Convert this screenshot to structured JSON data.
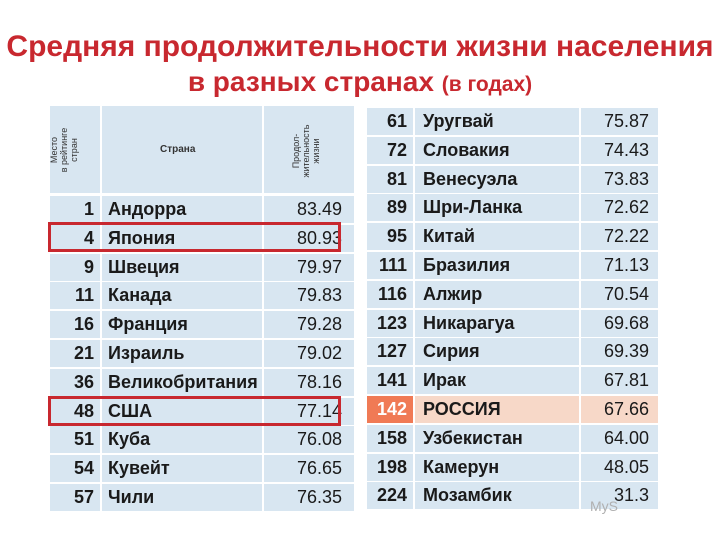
{
  "title": {
    "line1": "Средняя продолжительности жизни населения",
    "line2": "в разных странах",
    "line2_small": "(в годах)"
  },
  "header": {
    "rank": "Место\nв рейтинге\nстран",
    "country": "Страна",
    "value": "Продол-\nжительность\nжизни"
  },
  "left_rows": [
    {
      "rank": "1",
      "country": "Андорра",
      "value": "83.49"
    },
    {
      "rank": "4",
      "country": "Япония",
      "value": "80.93"
    },
    {
      "rank": "9",
      "country": "Швеция",
      "value": "79.97"
    },
    {
      "rank": "11",
      "country": "Канада",
      "value": "79.83"
    },
    {
      "rank": "16",
      "country": "Франция",
      "value": "79.28"
    },
    {
      "rank": "21",
      "country": "Израиль",
      "value": "79.02"
    },
    {
      "rank": "36",
      "country": "Великобритания",
      "value": "78.16"
    },
    {
      "rank": "48",
      "country": "США",
      "value": "77.14"
    },
    {
      "rank": "51",
      "country": "Куба",
      "value": "76.08"
    },
    {
      "rank": "54",
      "country": "Кувейт",
      "value": "76.65"
    },
    {
      "rank": "57",
      "country": "Чили",
      "value": "76.35"
    }
  ],
  "right_rows": [
    {
      "rank": "61",
      "country": "Уругвай",
      "value": "75.87"
    },
    {
      "rank": "72",
      "country": "Словакия",
      "value": "74.43"
    },
    {
      "rank": "81",
      "country": "Венесуэла",
      "value": "73.83"
    },
    {
      "rank": "89",
      "country": "Шри-Ланка",
      "value": "72.62"
    },
    {
      "rank": "95",
      "country": "Китай",
      "value": "72.22"
    },
    {
      "rank": "111",
      "country": "Бразилия",
      "value": "71.13"
    },
    {
      "rank": "116",
      "country": "Алжир",
      "value": "70.54"
    },
    {
      "rank": "123",
      "country": "Никарагуа",
      "value": "69.68"
    },
    {
      "rank": "127",
      "country": "Сирия",
      "value": "69.39"
    },
    {
      "rank": "141",
      "country": "Ирак",
      "value": "67.81"
    },
    {
      "rank": "142",
      "country": "РОССИЯ",
      "value": "67.66"
    },
    {
      "rank": "158",
      "country": "Узбекистан",
      "value": "64.00"
    },
    {
      "rank": "198",
      "country": "Камерун",
      "value": "48.05"
    },
    {
      "rank": "224",
      "country": "Мозамбик",
      "value": "31.3"
    }
  ],
  "highlighted_countries": [
    "Япония",
    "США"
  ],
  "russia_row_highlight": "РОССИЯ",
  "watermark": "MyS",
  "colors": {
    "title": "#c8282f",
    "row_bg": "#d8e6f1",
    "highlight_box": "#c8282f",
    "russia_bg": "#f7d8c8",
    "russia_rank_bg": "#f07a55"
  }
}
